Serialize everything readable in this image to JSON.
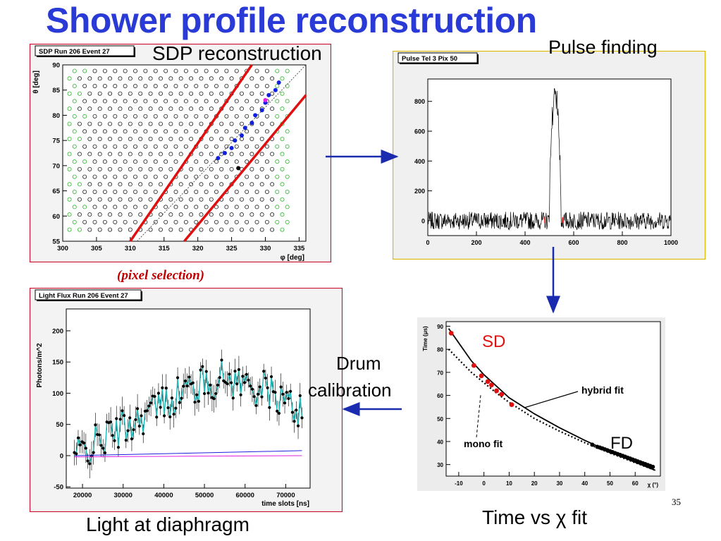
{
  "slide": {
    "title": "Shower profile reconstruction",
    "page_number": "35",
    "captions": {
      "sdp": "SDP reconstruction",
      "pulse": "Pulse finding",
      "pixel": "(pixel selection)",
      "drum_1": "Drum",
      "drum_2": "calibration",
      "light": "Light at diaphragm",
      "time_fit": "Time vs χ fit"
    },
    "colors": {
      "title": "#2a3ad6",
      "arrow": "#1a2bb0",
      "frame": "#c8102e"
    }
  },
  "chart_data": [
    {
      "id": "sdp",
      "type": "scatter",
      "title": "SDP Run 206 Event 27",
      "xlabel": "φ  [deg]",
      "ylabel": "θ  [deg]",
      "xlim": [
        300,
        336
      ],
      "ylim": [
        55,
        90
      ],
      "xticks": [
        300,
        305,
        310,
        315,
        320,
        325,
        330,
        335
      ],
      "yticks": [
        55,
        60,
        65,
        70,
        75,
        80,
        85,
        90
      ],
      "pixel_grid": {
        "rows": 22,
        "cols": 22,
        "x_start": 301,
        "x_step": 1.5,
        "y_start": 57.3,
        "y_step": 1.5
      },
      "selected_blue": [
        [
          332,
          86.5
        ],
        [
          331.5,
          85
        ],
        [
          330.5,
          84
        ],
        [
          330,
          82.5
        ],
        [
          329.5,
          81
        ],
        [
          328.5,
          80
        ],
        [
          328,
          78.5
        ],
        [
          327,
          77.5
        ],
        [
          326.5,
          76
        ],
        [
          325.5,
          75
        ],
        [
          325,
          73.5
        ],
        [
          324,
          72.5
        ],
        [
          323,
          71.5
        ]
      ],
      "selected_magenta": [
        [
          330,
          83
        ]
      ],
      "selected_black": [
        [
          326,
          69.5
        ]
      ],
      "sdp_line": [
        [
          311,
          55
        ],
        [
          336,
          90
        ]
      ],
      "boundary_lines": [
        [
          [
            310,
            55
          ],
          [
            328,
            90
          ]
        ],
        [
          [
            318,
            55
          ],
          [
            336,
            84
          ]
        ]
      ]
    },
    {
      "id": "pulse",
      "type": "line",
      "title": "Pulse Tel 3 Pix 50",
      "xlim": [
        0,
        1000
      ],
      "ylim": [
        -100,
        950
      ],
      "xticks": [
        0,
        200,
        400,
        600,
        800,
        1000
      ],
      "yticks": [
        0,
        200,
        400,
        600,
        800
      ],
      "baseline": 0,
      "noise_amplitude": 60,
      "pulse": {
        "start": 500,
        "end": 550,
        "peak": 880
      },
      "window_marks": [
        480,
        555
      ]
    },
    {
      "id": "lightflux",
      "type": "scatter",
      "title": "Light Flux Run 206 Event 27",
      "xlabel": "time slots [ns]",
      "ylabel": "Photons/m^2",
      "xlim": [
        16000,
        76000
      ],
      "ylim": [
        -52,
        235
      ],
      "xticks": [
        20000,
        30000,
        40000,
        50000,
        60000,
        70000
      ],
      "yticks": [
        -50,
        0,
        50,
        100,
        150,
        200
      ],
      "x_start": 18000,
      "x_end": 74000,
      "n_points": 120,
      "trend": [
        [
          18000,
          0
        ],
        [
          30000,
          45
        ],
        [
          45000,
          105
        ],
        [
          55000,
          125
        ],
        [
          65000,
          105
        ],
        [
          74000,
          70
        ]
      ],
      "blue_line": [
        [
          18000,
          0
        ],
        [
          74000,
          8
        ]
      ],
      "magenta_line": [
        [
          18000,
          -2
        ],
        [
          74000,
          0
        ]
      ]
    },
    {
      "id": "timefit",
      "type": "line",
      "xlabel": "χ (°)",
      "ylabel": "Time (μs)",
      "xlim": [
        -15,
        70
      ],
      "ylim": [
        25,
        92
      ],
      "xticks": [
        -10,
        0,
        10,
        20,
        30,
        40,
        50,
        60
      ],
      "yticks": [
        30,
        40,
        50,
        60,
        70,
        80,
        90
      ],
      "series": [
        {
          "name": "hybrid fit",
          "style": "solid",
          "x": [
            -14,
            -5,
            0,
            5,
            10,
            15,
            20,
            30,
            40,
            50,
            60,
            68
          ],
          "y": [
            89,
            75,
            69,
            64,
            59,
            55.5,
            52,
            46,
            40.5,
            35.5,
            31,
            27.5
          ]
        },
        {
          "name": "mono fit",
          "style": "dotted",
          "x": [
            -14,
            -5,
            0,
            5,
            10,
            15,
            20,
            30,
            40,
            50,
            60,
            68
          ],
          "y": [
            80,
            70,
            65.5,
            61,
            57,
            53.5,
            50,
            44.5,
            39.5,
            35,
            30.8,
            27.5
          ]
        }
      ],
      "sd_points": {
        "x": [
          -13,
          -4,
          -1,
          1.5,
          3,
          5,
          7,
          11
        ],
        "y": [
          87,
          73,
          68.5,
          66,
          64.5,
          62,
          60.5,
          56
        ]
      },
      "fd_points": {
        "x": [
          43,
          45,
          46,
          47,
          48,
          49,
          50,
          51,
          52,
          53,
          54,
          55,
          56,
          57,
          58,
          59,
          60,
          61,
          62,
          63,
          64,
          65,
          66,
          67
        ],
        "y": [
          38.6,
          37.7,
          37.4,
          37,
          36.6,
          36.2,
          35.8,
          35.4,
          35,
          34.6,
          34.2,
          33.8,
          33.4,
          33,
          32.6,
          32.2,
          31.8,
          31.4,
          31,
          30.6,
          30.2,
          29.8,
          29.4,
          29
        ]
      },
      "labels": {
        "sd": "SD",
        "fd": "FD",
        "hybrid": "hybrid fit",
        "mono": "mono fit"
      }
    }
  ]
}
